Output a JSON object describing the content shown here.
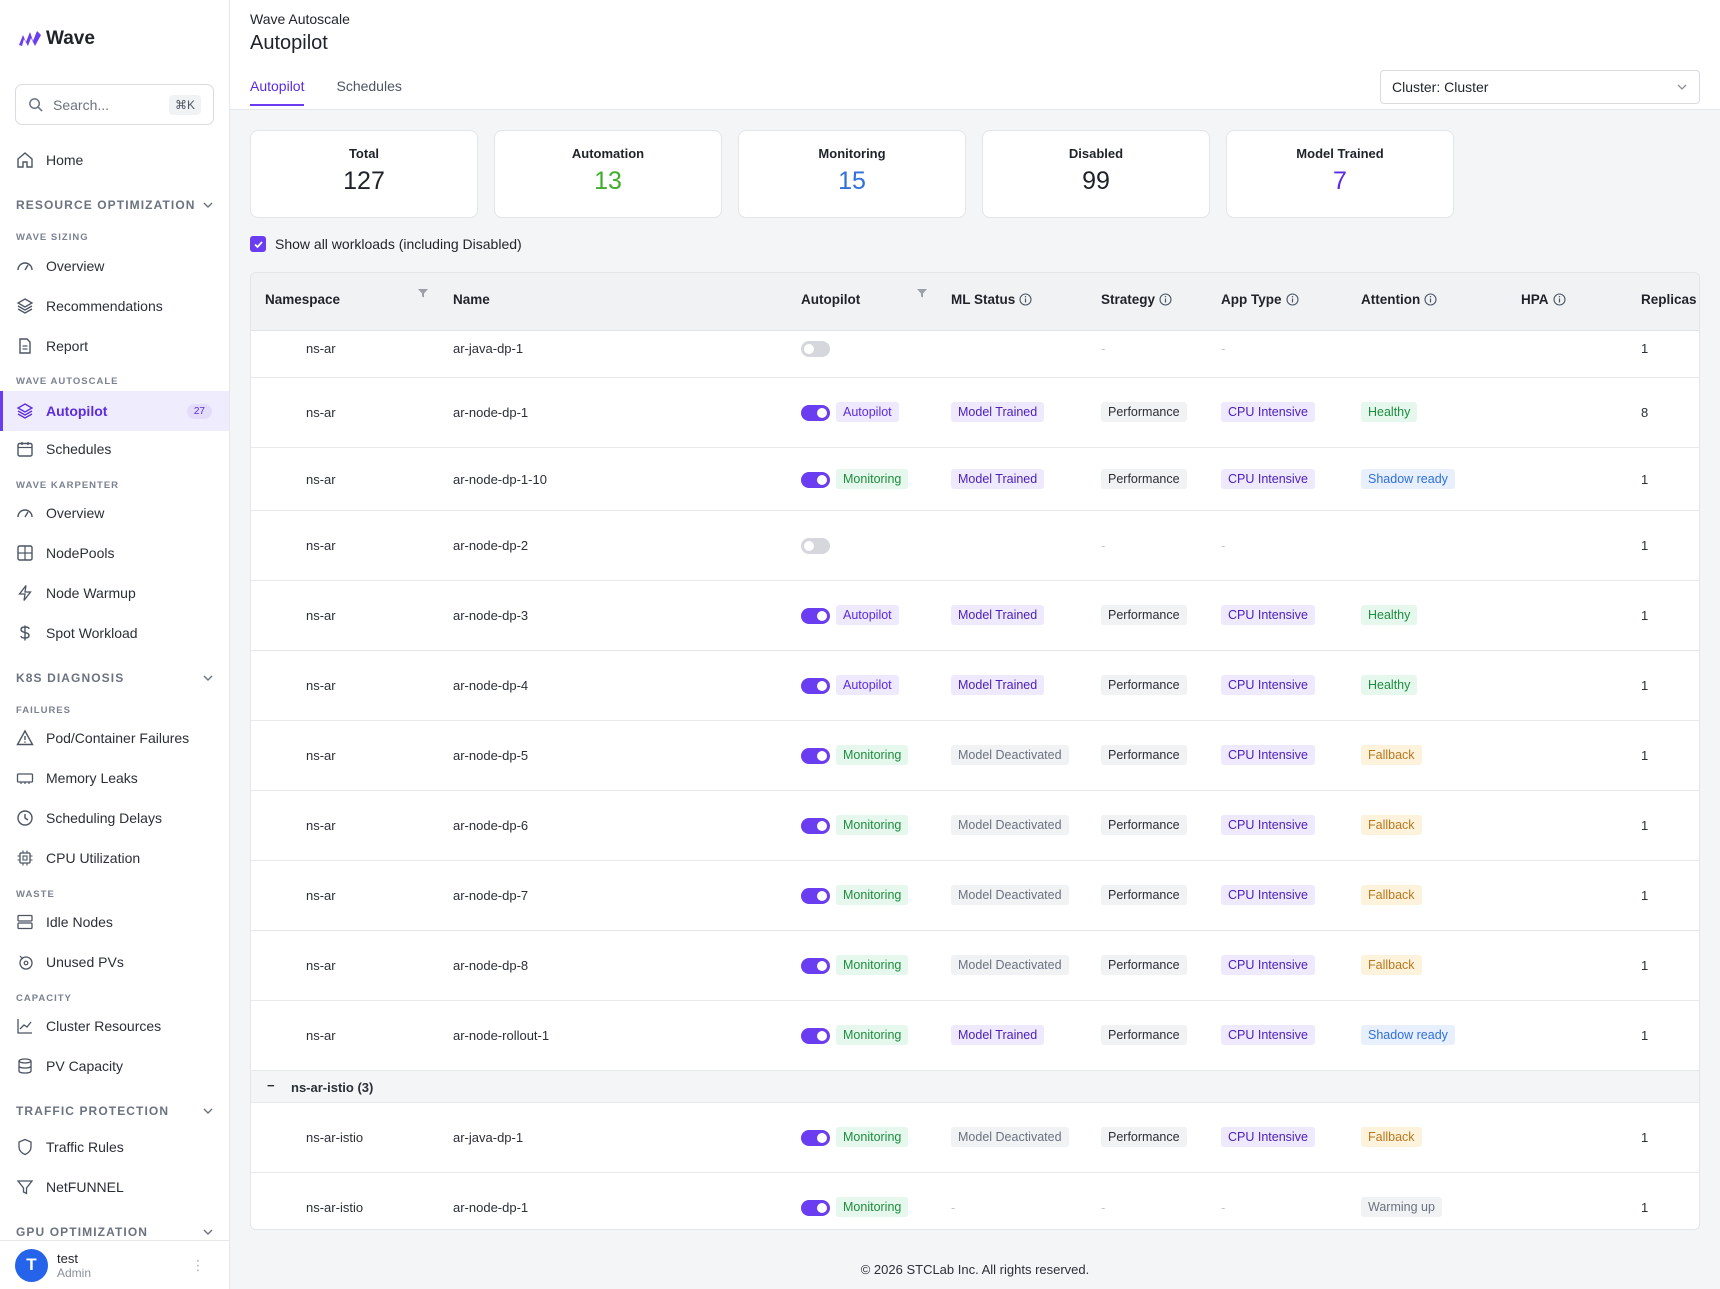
{
  "brand": {
    "name": "Wave"
  },
  "search": {
    "placeholder": "Search...",
    "shortcut": "⌘K"
  },
  "sidebar": {
    "home": "Home",
    "resource_optimization": "RESOURCE OPTIMIZATION",
    "wave_sizing": "WAVE SIZING",
    "overview": "Overview",
    "recommendations": "Recommendations",
    "report": "Report",
    "wave_autoscale": "WAVE AUTOSCALE",
    "autopilot": "Autopilot",
    "autopilot_badge": "27",
    "schedules": "Schedules",
    "wave_karpenter": "WAVE KARPENTER",
    "karpenter_overview": "Overview",
    "nodepools": "NodePools",
    "node_warmup": "Node Warmup",
    "spot_workload": "Spot Workload",
    "k8s_diagnosis": "K8S DIAGNOSIS",
    "failures": "FAILURES",
    "pod_failures": "Pod/Container Failures",
    "memory_leaks": "Memory Leaks",
    "scheduling_delays": "Scheduling Delays",
    "cpu_utilization": "CPU Utilization",
    "waste": "WASTE",
    "idle_nodes": "Idle Nodes",
    "unused_pvs": "Unused PVs",
    "capacity": "CAPACITY",
    "cluster_resources": "Cluster Resources",
    "pv_capacity": "PV Capacity",
    "traffic_protection": "TRAFFIC PROTECTION",
    "traffic_rules": "Traffic Rules",
    "netfunnel": "NetFUNNEL",
    "gpu_optimization": "GPU OPTIMIZATION"
  },
  "user": {
    "initial": "T",
    "name": "test",
    "role": "Admin"
  },
  "header": {
    "breadcrumb": "Wave Autoscale",
    "title": "Autopilot",
    "tabs": [
      "Autopilot",
      "Schedules"
    ],
    "cluster_select": "Cluster: Cluster"
  },
  "stats": [
    {
      "label": "Total",
      "value": "127",
      "color": "#1f2329"
    },
    {
      "label": "Automation",
      "value": "13",
      "color": "#3fae2a"
    },
    {
      "label": "Monitoring",
      "value": "15",
      "color": "#2f6fde"
    },
    {
      "label": "Disabled",
      "value": "99",
      "color": "#1f2329"
    },
    {
      "label": "Model Trained",
      "value": "7",
      "color": "#5b2be0"
    }
  ],
  "show_all_label": "Show all workloads (including Disabled)",
  "table": {
    "columns": [
      "Namespace",
      "Name",
      "Autopilot",
      "ML Status",
      "Strategy",
      "App Type",
      "Attention",
      "HPA",
      "Replicas"
    ],
    "rows": [
      {
        "ns": "ns-ar",
        "name": "ar-java-dp-1",
        "on": false,
        "mode": "",
        "ml": "",
        "strategy": "-",
        "app": "-",
        "attention": "",
        "replicas": "1"
      },
      {
        "ns": "ns-ar",
        "name": "ar-node-dp-1",
        "on": true,
        "mode": "Autopilot",
        "ml": "Model Trained",
        "strategy": "Performance",
        "app": "CPU Intensive",
        "attention": "Healthy",
        "replicas": "8"
      },
      {
        "ns": "ns-ar",
        "name": "ar-node-dp-1-10",
        "on": true,
        "mode": "Monitoring",
        "ml": "Model Trained",
        "strategy": "Performance",
        "app": "CPU Intensive",
        "attention": "Shadow ready",
        "replicas": "1"
      },
      {
        "ns": "ns-ar",
        "name": "ar-node-dp-2",
        "on": false,
        "mode": "",
        "ml": "",
        "strategy": "-",
        "app": "-",
        "attention": "",
        "replicas": "1"
      },
      {
        "ns": "ns-ar",
        "name": "ar-node-dp-3",
        "on": true,
        "mode": "Autopilot",
        "ml": "Model Trained",
        "strategy": "Performance",
        "app": "CPU Intensive",
        "attention": "Healthy",
        "replicas": "1"
      },
      {
        "ns": "ns-ar",
        "name": "ar-node-dp-4",
        "on": true,
        "mode": "Autopilot",
        "ml": "Model Trained",
        "strategy": "Performance",
        "app": "CPU Intensive",
        "attention": "Healthy",
        "replicas": "1"
      },
      {
        "ns": "ns-ar",
        "name": "ar-node-dp-5",
        "on": true,
        "mode": "Monitoring",
        "ml": "Model Deactivated",
        "strategy": "Performance",
        "app": "CPU Intensive",
        "attention": "Fallback",
        "replicas": "1"
      },
      {
        "ns": "ns-ar",
        "name": "ar-node-dp-6",
        "on": true,
        "mode": "Monitoring",
        "ml": "Model Deactivated",
        "strategy": "Performance",
        "app": "CPU Intensive",
        "attention": "Fallback",
        "replicas": "1"
      },
      {
        "ns": "ns-ar",
        "name": "ar-node-dp-7",
        "on": true,
        "mode": "Monitoring",
        "ml": "Model Deactivated",
        "strategy": "Performance",
        "app": "CPU Intensive",
        "attention": "Fallback",
        "replicas": "1"
      },
      {
        "ns": "ns-ar",
        "name": "ar-node-dp-8",
        "on": true,
        "mode": "Monitoring",
        "ml": "Model Deactivated",
        "strategy": "Performance",
        "app": "CPU Intensive",
        "attention": "Fallback",
        "replicas": "1"
      },
      {
        "ns": "ns-ar",
        "name": "ar-node-rollout-1",
        "on": true,
        "mode": "Monitoring",
        "ml": "Model Trained",
        "strategy": "Performance",
        "app": "CPU Intensive",
        "attention": "Shadow ready",
        "replicas": "1"
      },
      {
        "group": "ns-ar-istio (3)"
      },
      {
        "ns": "ns-ar-istio",
        "name": "ar-java-dp-1",
        "on": true,
        "mode": "Monitoring",
        "ml": "Model Deactivated",
        "strategy": "Performance",
        "app": "CPU Intensive",
        "attention": "Fallback",
        "replicas": "1"
      },
      {
        "ns": "ns-ar-istio",
        "name": "ar-node-dp-1",
        "on": true,
        "mode": "Monitoring",
        "ml": "-",
        "strategy": "-",
        "app": "-",
        "attention": "Warming up",
        "replicas": "1"
      }
    ]
  },
  "footer": "© 2026 STCLab Inc. All rights reserved."
}
